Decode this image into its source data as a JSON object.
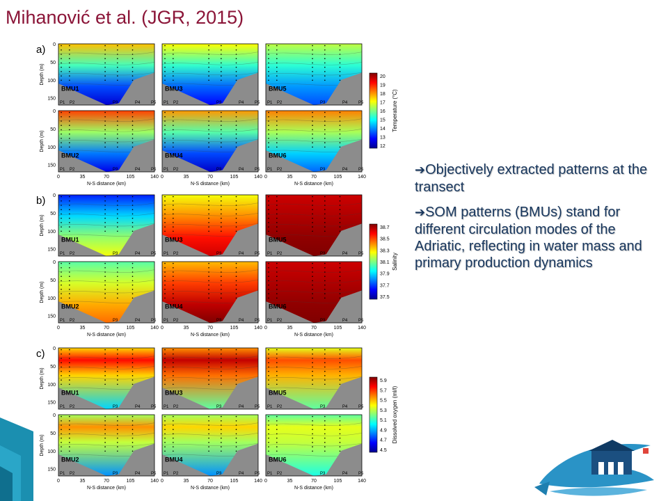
{
  "slide": {
    "title": "Mihanović et al. (JGR, 2015)",
    "bullets": [
      "Objectively extracted patterns at the transect",
      "SOM patterns (BMUs) stand for different circulation modes of the Adriatic, reflecting in water mass and primary production dynamics"
    ],
    "bullet_icon": "right-arrow-icon",
    "colors": {
      "title": "#8b1538",
      "bullet_text": "#17365d",
      "land": "#8c8c8c",
      "deco_teal": "#1b8fb0"
    }
  },
  "chart_data": [
    {
      "type": "heatmap",
      "panel_label": "a)",
      "variable": "temperature",
      "xlabel": "N-S distance (km)",
      "ylabel": "Depth (m)",
      "x_ticks": [
        "0",
        "35",
        "70",
        "105",
        "140"
      ],
      "y_ticks": [
        "0",
        "50",
        "100",
        "150"
      ],
      "xlim": [
        0,
        140
      ],
      "ylim": [
        0,
        170
      ],
      "stations": [
        "P1",
        "P2",
        "P3",
        "P4",
        "P5"
      ],
      "colorbar": {
        "label": "Temperature (°C)",
        "ticks": [
          "20",
          "19",
          "18",
          "17",
          "16",
          "15",
          "14",
          "13",
          "12"
        ],
        "range": [
          12,
          20
        ],
        "colors": [
          "#00008f",
          "#0000ff",
          "#0080ff",
          "#00ffff",
          "#80ff80",
          "#ffff00",
          "#ff8000",
          "#ff0000",
          "#800000"
        ]
      },
      "maps": [
        {
          "name": "BMU1",
          "surface": 17.5,
          "deep": 12.6
        },
        {
          "name": "BMU3",
          "surface": 17.0,
          "deep": 13.0
        },
        {
          "name": "BMU5",
          "surface": 16.5,
          "deep": 13.6
        },
        {
          "name": "BMU2",
          "surface": 18.5,
          "deep": 12.8
        },
        {
          "name": "BMU4",
          "surface": 17.8,
          "deep": 12.5
        },
        {
          "name": "BMU6",
          "surface": 18.0,
          "deep": 13.8
        }
      ]
    },
    {
      "type": "heatmap",
      "panel_label": "b)",
      "variable": "salinity",
      "xlabel": "N-S distance (km)",
      "ylabel": "Depth (m)",
      "x_ticks": [
        "0",
        "35",
        "70",
        "105",
        "140"
      ],
      "y_ticks": [
        "0",
        "50",
        "100",
        "150"
      ],
      "xlim": [
        0,
        140
      ],
      "ylim": [
        0,
        170
      ],
      "stations": [
        "P1",
        "P2",
        "P3",
        "P4",
        "P5"
      ],
      "colorbar": {
        "label": "Salinity",
        "ticks": [
          "38.7",
          "38.5",
          "38.3",
          "38.1",
          "37.9",
          "37.7",
          "37.5"
        ],
        "range": [
          37.5,
          38.8
        ],
        "colors": [
          "#00008f",
          "#0000ff",
          "#0080ff",
          "#00ffff",
          "#80ff80",
          "#ffff00",
          "#ff8000",
          "#ff0000",
          "#800000"
        ]
      },
      "maps": [
        {
          "name": "BMU1",
          "surface": 37.7,
          "deep": 38.3
        },
        {
          "name": "BMU3",
          "surface": 38.3,
          "deep": 38.7
        },
        {
          "name": "BMU5",
          "surface": 38.7,
          "deep": 38.8
        },
        {
          "name": "BMU2",
          "surface": 38.1,
          "deep": 38.5
        },
        {
          "name": "BMU4",
          "surface": 38.4,
          "deep": 38.8
        },
        {
          "name": "BMU6",
          "surface": 38.7,
          "deep": 38.8
        }
      ]
    },
    {
      "type": "heatmap",
      "panel_label": "c)",
      "variable": "dissolved_oxygen",
      "xlabel": "N-S distance (km)",
      "ylabel": "Depth (m)",
      "x_ticks": [
        "0",
        "35",
        "70",
        "105",
        "140"
      ],
      "y_ticks": [
        "0",
        "50",
        "100",
        "150"
      ],
      "xlim": [
        0,
        140
      ],
      "ylim": [
        0,
        170
      ],
      "stations": [
        "P1",
        "P2",
        "P3",
        "P4",
        "P5"
      ],
      "colorbar": {
        "label": "Dissolved oxygen (ml/l)",
        "ticks": [
          "5.9",
          "5.7",
          "5.5",
          "5.3",
          "5.1",
          "4.9",
          "4.7",
          "4.5"
        ],
        "range": [
          4.5,
          6.0
        ],
        "colors": [
          "#00008f",
          "#0000ff",
          "#0080ff",
          "#00ffff",
          "#80ff80",
          "#ffff00",
          "#ff8000",
          "#ff0000",
          "#800000"
        ]
      },
      "maps": [
        {
          "name": "BMU1",
          "surface": 5.5,
          "max": 5.8,
          "deep": 5.0
        },
        {
          "name": "BMU3",
          "surface": 5.6,
          "max": 5.9,
          "deep": 5.2
        },
        {
          "name": "BMU5",
          "surface": 5.4,
          "max": 5.7,
          "deep": 5.2
        },
        {
          "name": "BMU2",
          "surface": 5.3,
          "max": 5.6,
          "deep": 4.9
        },
        {
          "name": "BMU4",
          "surface": 5.3,
          "max": 5.5,
          "deep": 4.9
        },
        {
          "name": "BMU6",
          "surface": 5.2,
          "max": 5.4,
          "deep": 5.1
        }
      ]
    }
  ]
}
